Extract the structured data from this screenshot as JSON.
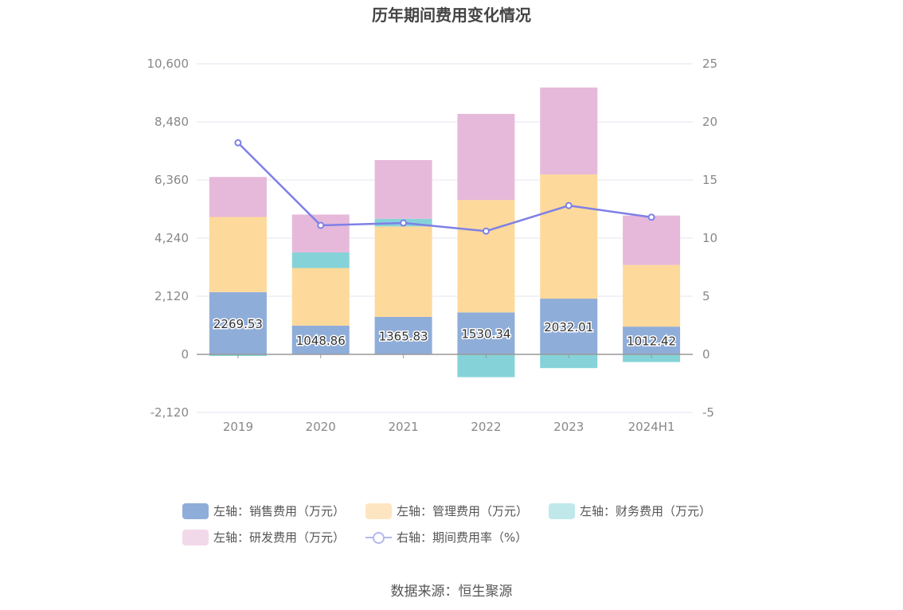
{
  "title": "历年期间费用变化情况",
  "source": "数据来源：恒生聚源",
  "colors": {
    "sales": "#8fadd9",
    "admin": "#fdd99b",
    "finance": "#85d3d8",
    "rnd": "#e6b9da",
    "rate": "#7e80e6",
    "grid": "#e6e6f0",
    "axis": "#999999"
  },
  "legend": [
    {
      "label": "左轴：销售费用（万元）",
      "color": "#8fadd9",
      "kind": "bar"
    },
    {
      "label": "左轴：管理费用（万元）",
      "color": "#fde5c2",
      "kind": "bar"
    },
    {
      "label": "左轴：财务费用（万元）",
      "color": "#c0e8ea",
      "kind": "bar"
    },
    {
      "label": "左轴：研发费用（万元）",
      "color": "#f2d9ea",
      "kind": "bar"
    },
    {
      "label": "右轴：期间费用率（%）",
      "color": "#b6b7ee",
      "kind": "line"
    }
  ],
  "chart_data": {
    "type": "bar",
    "stacked": true,
    "categories": [
      "2019",
      "2020",
      "2021",
      "2022",
      "2023",
      "2024H1"
    ],
    "series": [
      {
        "name": "左轴：销售费用（万元）",
        "axis": "left",
        "values": [
          2269.53,
          1048.86,
          1365.83,
          1530.34,
          2032.01,
          1012.42
        ],
        "color": "#8fadd9"
      },
      {
        "name": "左轴：管理费用（万元）",
        "axis": "left",
        "values": [
          2740,
          2100,
          3300,
          4100,
          4530,
          2250
        ],
        "color": "#fdd99b"
      },
      {
        "name": "左轴：财务费用（万元）",
        "axis": "left",
        "values": [
          -60,
          570,
          280,
          -830,
          -500,
          -280
        ],
        "color": "#85d3d8"
      },
      {
        "name": "左轴：研发费用（万元）",
        "axis": "left",
        "values": [
          1460,
          1380,
          2140,
          3140,
          3170,
          1800
        ],
        "color": "#e6b9da"
      },
      {
        "name": "右轴：期间费用率（%）",
        "axis": "right",
        "type": "line",
        "values": [
          18.2,
          11.1,
          11.3,
          10.6,
          12.8,
          11.8
        ],
        "color": "#7e80e6"
      }
    ],
    "data_labels": [
      "2269.53",
      "1048.86",
      "1365.83",
      "1530.34",
      "2032.01",
      "1012.42"
    ],
    "y_left": {
      "ticks": [
        "10,600",
        "8,480",
        "6,360",
        "4,240",
        "2,120",
        "0",
        "-2,120"
      ],
      "range": [
        -2120,
        10600
      ]
    },
    "y_right": {
      "ticks": [
        "25",
        "20",
        "15",
        "10",
        "5",
        "0",
        "-5"
      ],
      "range": [
        -5,
        25
      ]
    },
    "grid": true,
    "legend_position": "bottom"
  }
}
